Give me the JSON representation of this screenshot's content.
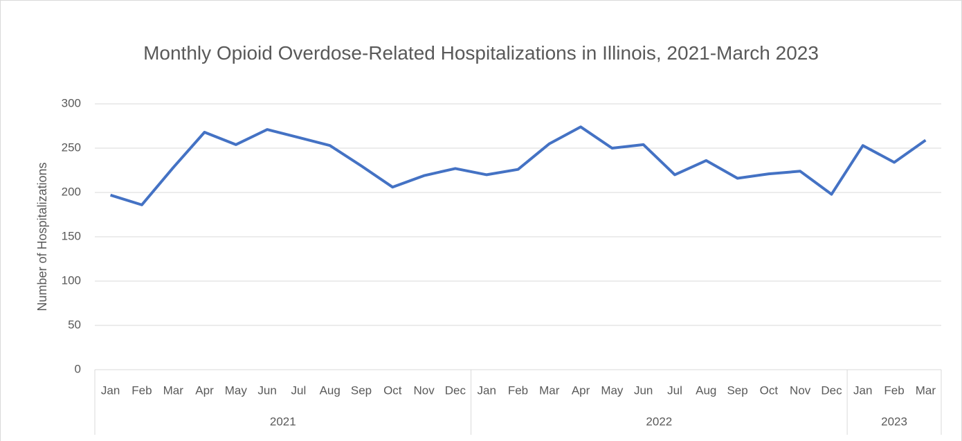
{
  "chart_data": {
    "type": "line",
    "title": "Monthly Opioid Overdose-Related Hospitalizations in Illinois, 2021-March 2023",
    "y_label": "Number of Hospitalizations",
    "groups": [
      {
        "name": "2021",
        "categories": [
          "Jan",
          "Feb",
          "Mar",
          "Apr",
          "May",
          "Jun",
          "Jul",
          "Aug",
          "Sep",
          "Oct",
          "Nov",
          "Dec"
        ]
      },
      {
        "name": "2022",
        "categories": [
          "Jan",
          "Feb",
          "Mar",
          "Apr",
          "May",
          "Jun",
          "Jul",
          "Aug",
          "Sep",
          "Oct",
          "Nov",
          "Dec"
        ]
      },
      {
        "name": "2023",
        "categories": [
          "Jan",
          "Feb",
          "Mar"
        ]
      }
    ],
    "series": [
      {
        "name": "Hospitalizations",
        "color": "#4472c4",
        "values": [
          197,
          186,
          228,
          268,
          254,
          271,
          262,
          253,
          230,
          206,
          219,
          227,
          220,
          226,
          255,
          274,
          250,
          254,
          220,
          236,
          216,
          221,
          224,
          198,
          253,
          234,
          259
        ]
      }
    ],
    "ylim": [
      0,
      300
    ],
    "yticks": [
      0,
      50,
      100,
      150,
      200,
      250,
      300
    ],
    "grid": true
  }
}
